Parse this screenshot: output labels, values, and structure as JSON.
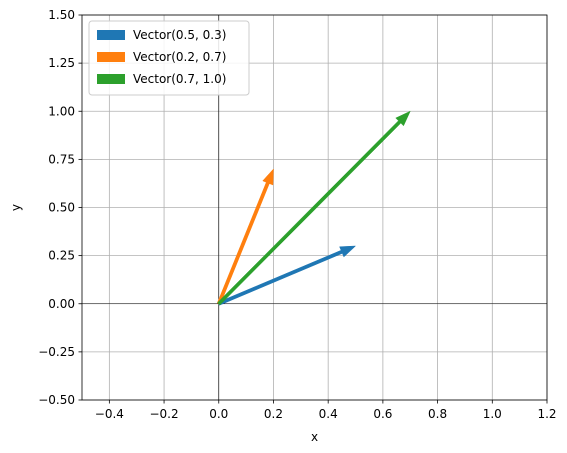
{
  "chart_data": {
    "type": "vector",
    "title": "",
    "xlabel": "x",
    "ylabel": "y",
    "xlim": [
      -0.5,
      1.2
    ],
    "ylim": [
      -0.5,
      1.5
    ],
    "x_ticks": [
      "−0.4",
      "−0.2",
      "0.0",
      "0.2",
      "0.4",
      "0.6",
      "0.8",
      "1.0",
      "1.2"
    ],
    "x_tick_values": [
      -0.4,
      -0.2,
      0.0,
      0.2,
      0.4,
      0.6,
      0.8,
      1.0,
      1.2
    ],
    "y_ticks": [
      "−0.50",
      "−0.25",
      "0.00",
      "0.25",
      "0.50",
      "0.75",
      "1.00",
      "1.25",
      "1.50"
    ],
    "y_tick_values": [
      -0.5,
      -0.25,
      0.0,
      0.25,
      0.5,
      0.75,
      1.0,
      1.25,
      1.5
    ],
    "grid": true,
    "legend_position": "top-left",
    "series": [
      {
        "name": "Vector(0.5, 0.3)",
        "origin": [
          0,
          0
        ],
        "vector": [
          0.5,
          0.3
        ],
        "color": "#1f77b4"
      },
      {
        "name": "Vector(0.2, 0.7)",
        "origin": [
          0,
          0
        ],
        "vector": [
          0.2,
          0.7
        ],
        "color": "#ff7f0e"
      },
      {
        "name": "Vector(0.7, 1.0)",
        "origin": [
          0,
          0
        ],
        "vector": [
          0.7,
          1.0
        ],
        "color": "#2ca02c"
      }
    ]
  }
}
